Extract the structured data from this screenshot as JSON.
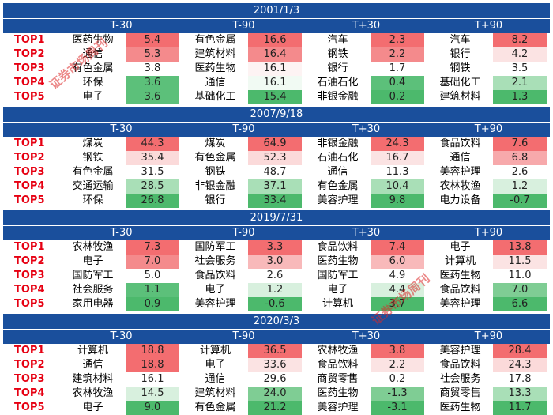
{
  "row_labels": [
    "TOP1",
    "TOP2",
    "TOP3",
    "TOP4",
    "TOP5"
  ],
  "column_headers": [
    "T-30",
    "T-90",
    "T+30",
    "T+90"
  ],
  "colors": {
    "header_bg": "#1a4f9c",
    "label_red": "#e60012"
  },
  "blocks": [
    {
      "date": "2001/1/3",
      "rows": [
        [
          {
            "name": "医药生物",
            "value": "5.4",
            "bg": "#f36d70"
          },
          {
            "name": "有色金属",
            "value": "16.6",
            "bg": "#f36d70"
          },
          {
            "name": "汽车",
            "value": "2.3",
            "bg": "#f36d70"
          },
          {
            "name": "汽车",
            "value": "8.2",
            "bg": "#f36d70"
          }
        ],
        [
          {
            "name": "通信",
            "value": "5.3",
            "bg": "#f48a8c"
          },
          {
            "name": "建筑材料",
            "value": "16.4",
            "bg": "#f48a8c"
          },
          {
            "name": "钢铁",
            "value": "2.2",
            "bg": "#f48a8c"
          },
          {
            "name": "银行",
            "value": "4.2",
            "bg": "#fbe3e3"
          }
        ],
        [
          {
            "name": "有色金属",
            "value": "3.8",
            "bg": "#ffffff"
          },
          {
            "name": "医药生物",
            "value": "16.1",
            "bg": "#fdf3f3"
          },
          {
            "name": "银行",
            "value": "1.7",
            "bg": "#ffffff"
          },
          {
            "name": "钢铁",
            "value": "3.5",
            "bg": "#ffffff"
          }
        ],
        [
          {
            "name": "环保",
            "value": "3.6",
            "bg": "#5cc07a"
          },
          {
            "name": "通信",
            "value": "16.1",
            "bg": "#f1faf3"
          },
          {
            "name": "石油石化",
            "value": "0.4",
            "bg": "#5cc07a"
          },
          {
            "name": "基础化工",
            "value": "2.1",
            "bg": "#a9dfb7"
          }
        ],
        [
          {
            "name": "电子",
            "value": "3.6",
            "bg": "#5cc07a"
          },
          {
            "name": "基础化工",
            "value": "15.4",
            "bg": "#4cb96c"
          },
          {
            "name": "非银金融",
            "value": "0.2",
            "bg": "#4cb96c"
          },
          {
            "name": "建筑材料",
            "value": "1.3",
            "bg": "#4cb96c"
          }
        ]
      ]
    },
    {
      "date": "2007/9/18",
      "rows": [
        [
          {
            "name": "煤炭",
            "value": "44.3",
            "bg": "#f36d70"
          },
          {
            "name": "煤炭",
            "value": "64.9",
            "bg": "#f36d70"
          },
          {
            "name": "非银金融",
            "value": "24.3",
            "bg": "#f36d70"
          },
          {
            "name": "食品饮料",
            "value": "7.6",
            "bg": "#f36d70"
          }
        ],
        [
          {
            "name": "钢铁",
            "value": "35.4",
            "bg": "#fbdada"
          },
          {
            "name": "有色金属",
            "value": "52.3",
            "bg": "#fbdada"
          },
          {
            "name": "石油石化",
            "value": "16.7",
            "bg": "#fbe3e3"
          },
          {
            "name": "通信",
            "value": "6.8",
            "bg": "#f7a9ab"
          }
        ],
        [
          {
            "name": "有色金属",
            "value": "31.5",
            "bg": "#ffffff"
          },
          {
            "name": "钢铁",
            "value": "48.7",
            "bg": "#ffffff"
          },
          {
            "name": "通信",
            "value": "11.3",
            "bg": "#ffffff"
          },
          {
            "name": "美容护理",
            "value": "2.6",
            "bg": "#ffffff"
          }
        ],
        [
          {
            "name": "交通运输",
            "value": "28.5",
            "bg": "#a9dfb7"
          },
          {
            "name": "非银金融",
            "value": "37.1",
            "bg": "#a9dfb7"
          },
          {
            "name": "有色金属",
            "value": "10.4",
            "bg": "#a9dfb7"
          },
          {
            "name": "农林牧渔",
            "value": "1.2",
            "bg": "#d8f0de"
          }
        ],
        [
          {
            "name": "环保",
            "value": "26.8",
            "bg": "#4cb96c"
          },
          {
            "name": "银行",
            "value": "33.4",
            "bg": "#4cb96c"
          },
          {
            "name": "美容护理",
            "value": "9.8",
            "bg": "#4cb96c"
          },
          {
            "name": "电力设备",
            "value": "-0.7",
            "bg": "#4cb96c"
          }
        ]
      ]
    },
    {
      "date": "2019/7/31",
      "rows": [
        [
          {
            "name": "农林牧渔",
            "value": "7.3",
            "bg": "#f36d70"
          },
          {
            "name": "国防军工",
            "value": "3.3",
            "bg": "#f36d70"
          },
          {
            "name": "食品饮料",
            "value": "7.4",
            "bg": "#f36d70"
          },
          {
            "name": "电子",
            "value": "13.8",
            "bg": "#f36d70"
          }
        ],
        [
          {
            "name": "电子",
            "value": "7.0",
            "bg": "#f48a8c"
          },
          {
            "name": "社会服务",
            "value": "3.0",
            "bg": "#f8b9ba"
          },
          {
            "name": "医药生物",
            "value": "6.0",
            "bg": "#f8b9ba"
          },
          {
            "name": "计算机",
            "value": "11.5",
            "bg": "#fbe3e3"
          }
        ],
        [
          {
            "name": "国防军工",
            "value": "5.0",
            "bg": "#ffffff"
          },
          {
            "name": "食品饮料",
            "value": "2.6",
            "bg": "#ffffff"
          },
          {
            "name": "国防军工",
            "value": "4.9",
            "bg": "#ffffff"
          },
          {
            "name": "医药生物",
            "value": "11.0",
            "bg": "#ffffff"
          }
        ],
        [
          {
            "name": "社会服务",
            "value": "1.1",
            "bg": "#5cc07a"
          },
          {
            "name": "电子",
            "value": "1.2",
            "bg": "#d8f0de"
          },
          {
            "name": "电子",
            "value": "4.4",
            "bg": "#d8f0de"
          },
          {
            "name": "食品饮料",
            "value": "7.0",
            "bg": "#7fcd94"
          }
        ],
        [
          {
            "name": "家用电器",
            "value": "0.9",
            "bg": "#4cb96c"
          },
          {
            "name": "美容护理",
            "value": "-0.6",
            "bg": "#4cb96c"
          },
          {
            "name": "计算机",
            "value": "3.7",
            "bg": "#4cb96c"
          },
          {
            "name": "美容护理",
            "value": "6.6",
            "bg": "#4cb96c"
          }
        ]
      ]
    },
    {
      "date": "2020/3/3",
      "rows": [
        [
          {
            "name": "计算机",
            "value": "18.8",
            "bg": "#f36d70"
          },
          {
            "name": "计算机",
            "value": "36.5",
            "bg": "#f36d70"
          },
          {
            "name": "农林牧渔",
            "value": "3.8",
            "bg": "#f36d70"
          },
          {
            "name": "美容护理",
            "value": "28.4",
            "bg": "#f36d70"
          }
        ],
        [
          {
            "name": "通信",
            "value": "18.8",
            "bg": "#f36d70"
          },
          {
            "name": "电子",
            "value": "33.6",
            "bg": "#fbe3e3"
          },
          {
            "name": "食品饮料",
            "value": "2.2",
            "bg": "#fbe3e3"
          },
          {
            "name": "食品饮料",
            "value": "24.3",
            "bg": "#fbdada"
          }
        ],
        [
          {
            "name": "建筑材料",
            "value": "16.1",
            "bg": "#ffffff"
          },
          {
            "name": "通信",
            "value": "29.6",
            "bg": "#ffffff"
          },
          {
            "name": "商贸零售",
            "value": "0.2",
            "bg": "#ffffff"
          },
          {
            "name": "社会服务",
            "value": "17.8",
            "bg": "#ffffff"
          }
        ],
        [
          {
            "name": "农林牧渔",
            "value": "14.5",
            "bg": "#d8f0de"
          },
          {
            "name": "建筑材料",
            "value": "24.0",
            "bg": "#7fcd94"
          },
          {
            "name": "医药生物",
            "value": "-1.3",
            "bg": "#7fcd94"
          },
          {
            "name": "商贸零售",
            "value": "13.3",
            "bg": "#a9dfb7"
          }
        ],
        [
          {
            "name": "电子",
            "value": "9.0",
            "bg": "#4cb96c"
          },
          {
            "name": "有色金属",
            "value": "21.2",
            "bg": "#4cb96c"
          },
          {
            "name": "美容护理",
            "value": "-3.1",
            "bg": "#4cb96c"
          },
          {
            "name": "医药生物",
            "value": "11.7",
            "bg": "#4cb96c"
          }
        ]
      ]
    }
  ],
  "watermark": "证券市场周刊"
}
